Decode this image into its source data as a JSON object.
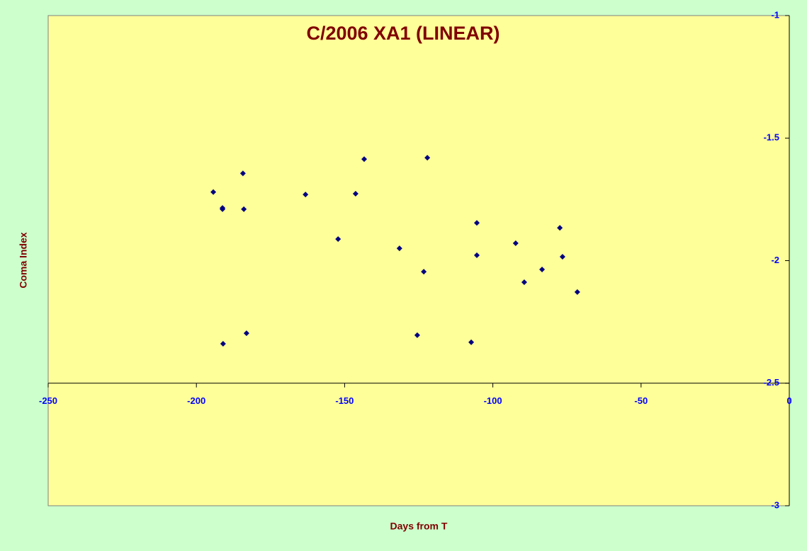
{
  "chart_data": {
    "type": "scatter",
    "title": "C/2006 XA1 (LINEAR)",
    "x_label": "Days from T",
    "y_label": "Coma Index",
    "x": [
      -194.3,
      -191.2,
      -191.2,
      -184.3,
      -184.0,
      -163.2,
      -146.3,
      -143.4,
      -122.1,
      -152.2,
      -131.5,
      -123.3,
      -105.4,
      -105.4,
      -92.3,
      -77.4,
      -76.5,
      -89.4,
      -83.4,
      -71.5,
      -191.0,
      -183.1,
      -125.5,
      -107.3
    ],
    "series": [
      {
        "name": "Coma Index",
        "color": "#000080",
        "values": [
          -1.72,
          -1.785,
          -1.79,
          -1.644,
          -1.79,
          -1.73,
          -1.727,
          -1.586,
          -1.58,
          -1.912,
          -1.95,
          -2.045,
          -1.846,
          -1.978,
          -1.929,
          -1.866,
          -1.984,
          -2.088,
          -2.036,
          -2.128,
          -2.339,
          -2.296,
          -2.304,
          -2.333
        ]
      }
    ],
    "xlim": [
      -250,
      0
    ],
    "xticks": [
      -250,
      -200,
      -150,
      -100,
      -50,
      0
    ],
    "ylim": [
      -3,
      -1
    ],
    "yticks": [
      -1,
      -1.5,
      -2,
      -2.5,
      -3
    ],
    "x_axis_at": -2.5,
    "grid": false
  }
}
